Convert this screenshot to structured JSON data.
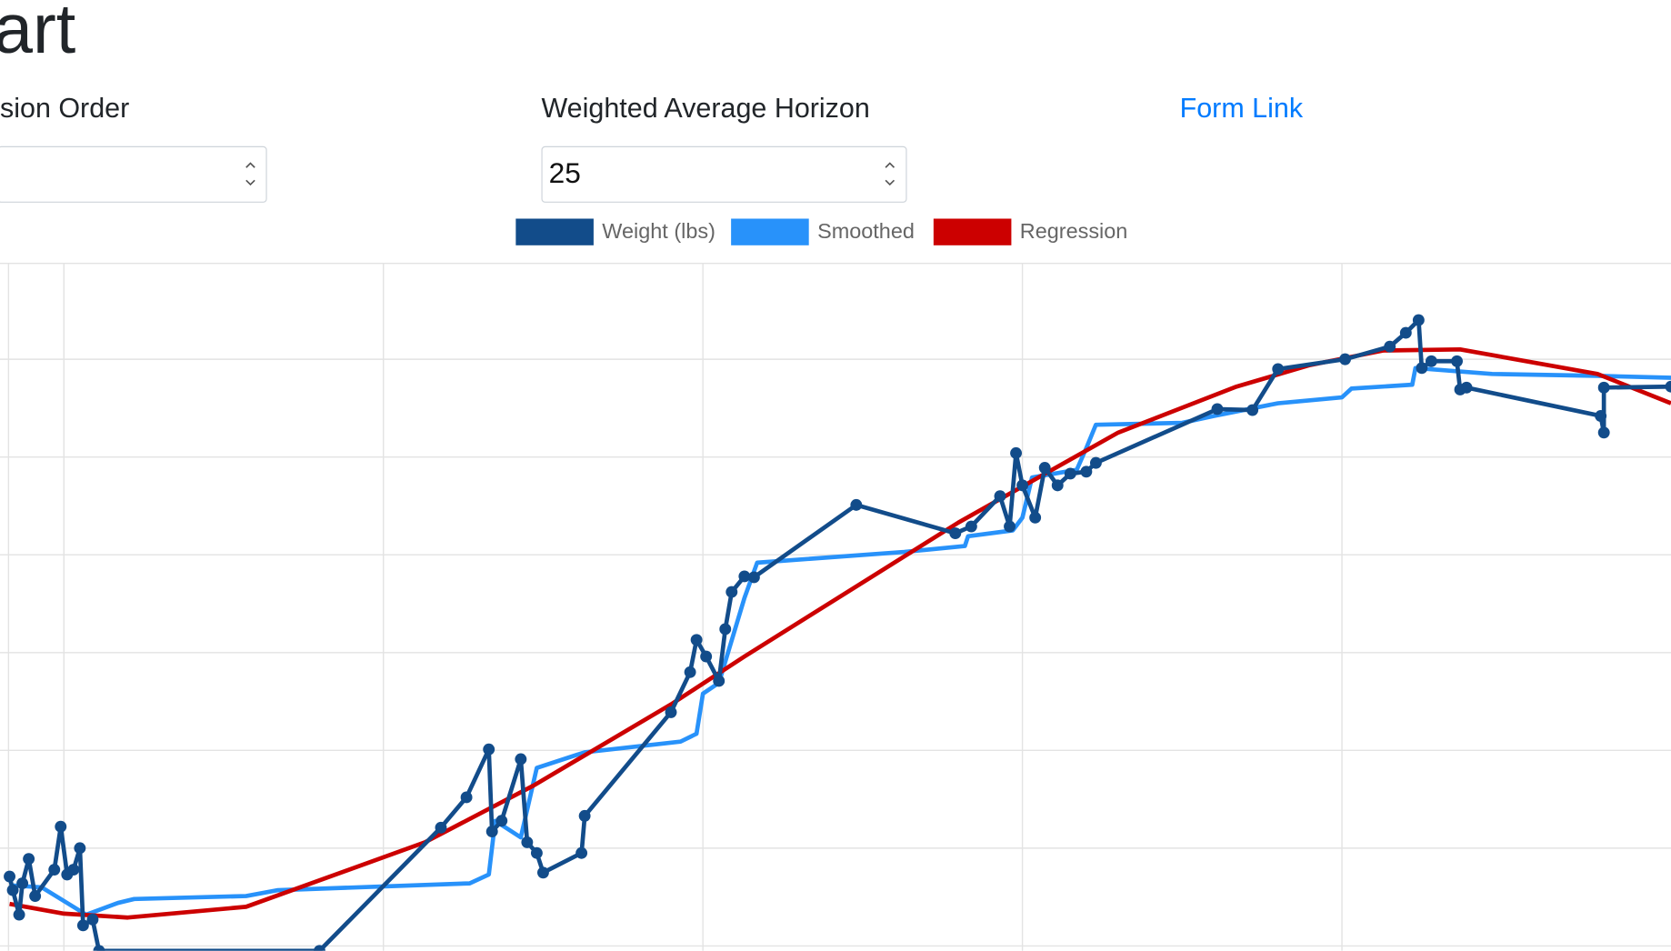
{
  "header": {
    "title": "art"
  },
  "controls": {
    "regression_order_label": "sion Order",
    "weighted_average_horizon_label": "Weighted Average Horizon",
    "weighted_average_horizon_value": 25,
    "form_link": "Form Link"
  },
  "chart_data": {
    "type": "line",
    "series": [
      {
        "name": "Weight (lbs)",
        "color": "#124c8a",
        "markers": true,
        "x": [
          -17,
          -16,
          -14,
          -13,
          -11,
          -9,
          -3,
          -1,
          1,
          3,
          5,
          6,
          9,
          11,
          80,
          118,
          126,
          133,
          134,
          137,
          143,
          145,
          148,
          150,
          162,
          163,
          190,
          196,
          198,
          201,
          205,
          207,
          209,
          213,
          216,
          248,
          279,
          284,
          293,
          296,
          298,
          300,
          304,
          307,
          311,
          315,
          320,
          323,
          361,
          372,
          380,
          401,
          415,
          420,
          424,
          425,
          428,
          436,
          437,
          439,
          481,
          482,
          482,
          503
        ],
        "values": [
          71,
          57,
          32,
          64,
          89,
          51,
          78,
          122,
          73,
          78,
          100,
          21,
          27,
          -5,
          -5,
          121,
          152,
          201,
          117,
          128,
          191,
          106,
          95,
          75,
          95,
          133,
          239,
          280,
          313,
          296,
          271,
          324,
          362,
          378,
          377,
          451,
          422,
          429,
          460,
          429,
          504,
          471,
          438,
          489,
          471,
          483,
          485,
          494,
          549,
          548,
          590,
          600,
          613,
          627,
          640,
          591,
          598,
          598,
          569,
          571,
          542,
          525,
          571,
          572
        ]
      },
      {
        "name": "Smoothed",
        "color": "#2892fa",
        "markers": false,
        "x": [
          -17,
          -7,
          7,
          17,
          22,
          57,
          67,
          127,
          133,
          135,
          143,
          148,
          163,
          193,
          198,
          200,
          205,
          213,
          217,
          263,
          282,
          283,
          297,
          300,
          303,
          317,
          320,
          323,
          350,
          360,
          380,
          400,
          403,
          422,
          423,
          447,
          480,
          503
        ],
        "values": [
          62,
          60,
          32,
          44,
          48,
          51,
          57,
          64,
          73,
          128,
          111,
          182,
          198,
          209,
          217,
          258,
          269,
          356,
          392,
          403,
          409,
          419,
          425,
          438,
          479,
          487,
          509,
          533,
          535,
          542,
          555,
          561,
          570,
          574,
          591,
          585,
          583,
          581
        ]
      },
      {
        "name": "Regression",
        "color": "#cc0000",
        "markers": false,
        "x": [
          -17,
          0,
          20,
          57,
          113,
          147,
          190,
          213,
          280,
          330,
          367,
          390,
          413,
          437,
          480,
          503
        ],
        "values": [
          43,
          33,
          29,
          40,
          106,
          164,
          247,
          296,
          433,
          525,
          572,
          594,
          609,
          610,
          585,
          555
        ]
      }
    ],
    "xlim": [
      -20,
      503
    ],
    "ylim": [
      -5,
      698
    ],
    "xticks": [
      0,
      100,
      200,
      300,
      400
    ],
    "yticks": [
      0,
      100,
      200,
      300,
      400,
      500,
      600
    ],
    "grid": true
  }
}
